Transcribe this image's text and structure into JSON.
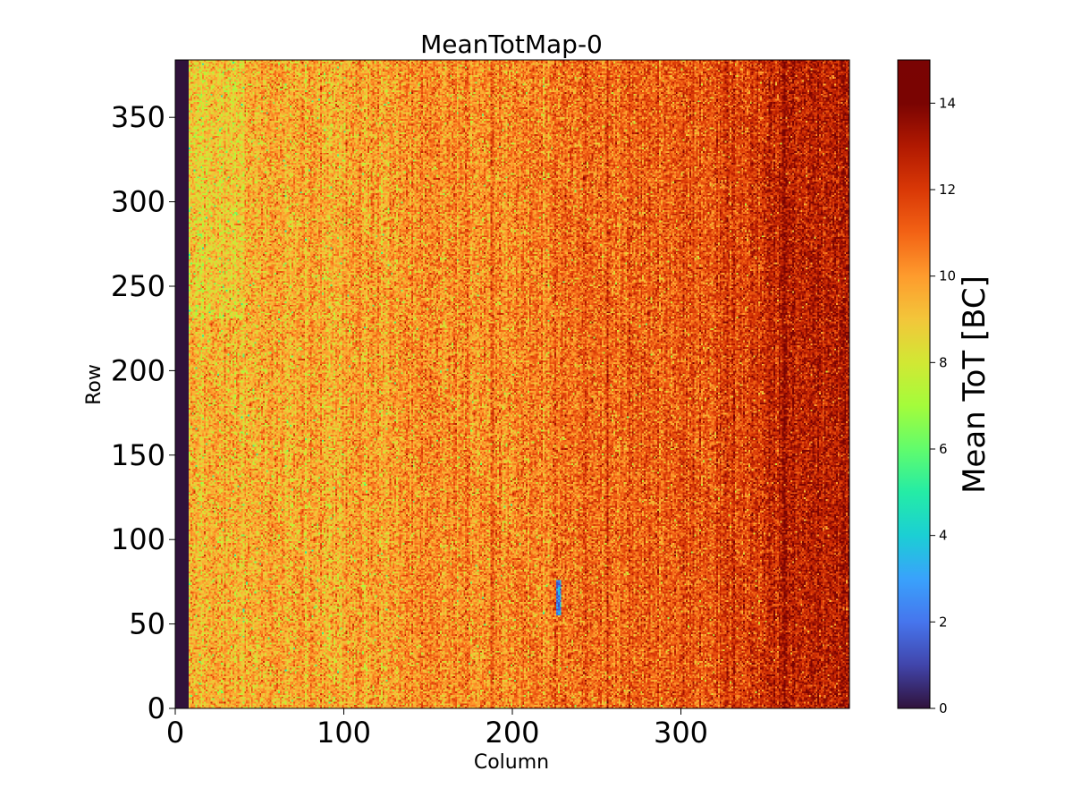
{
  "chart_data": {
    "type": "heatmap",
    "title": "MeanTotMap-0",
    "xlabel": "Column",
    "ylabel": "Row",
    "xlim": [
      0,
      400
    ],
    "ylim": [
      0,
      384
    ],
    "x_ticks": [
      0,
      100,
      200,
      300
    ],
    "y_ticks": [
      0,
      50,
      100,
      150,
      200,
      250,
      300,
      350
    ],
    "colorbar": {
      "label": "Mean ToT [BC]",
      "range": [
        0,
        15
      ],
      "ticks": [
        0,
        2,
        4,
        6,
        8,
        10,
        12,
        14
      ],
      "colormap": "turbo"
    },
    "grid": false,
    "features": {
      "dead_columns": [
        0,
        7
      ],
      "mean_value_left_region": 9.5,
      "mean_value_right_region": 12.5,
      "low_value_spot": {
        "column": 227,
        "row_range": [
          55,
          75
        ],
        "value": 1
      }
    }
  }
}
